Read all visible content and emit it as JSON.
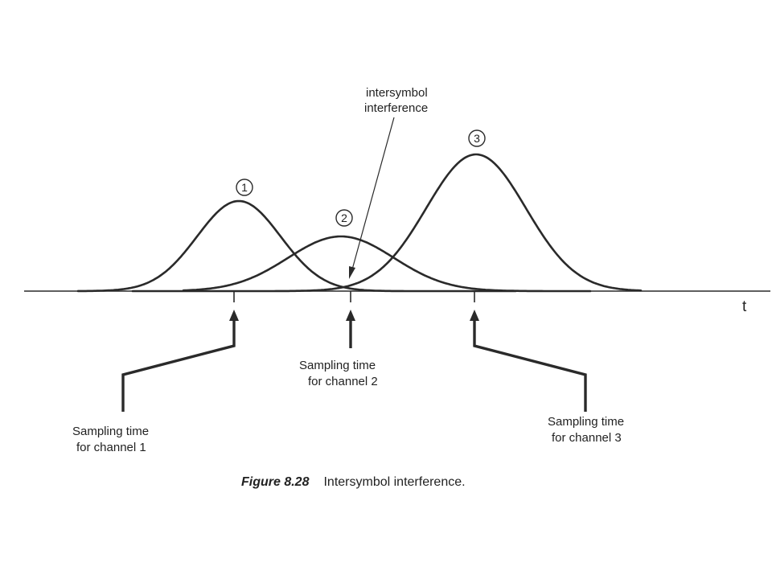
{
  "axis": {
    "label": "t"
  },
  "pulses": [
    {
      "id": "pulse-1",
      "marker": "1"
    },
    {
      "id": "pulse-2",
      "marker": "2"
    },
    {
      "id": "pulse-3",
      "marker": "3"
    }
  ],
  "annotation": {
    "line1": "intersymbol",
    "line2": "interference"
  },
  "sampling_labels": [
    {
      "line1": "Sampling time",
      "line2": "for channel 1"
    },
    {
      "line1": "Sampling time",
      "line2": "for channel 2"
    },
    {
      "line1": "Sampling time",
      "line2": "for channel 3"
    }
  ],
  "caption": {
    "number": "Figure 8.28",
    "text": "Intersymbol interference."
  }
}
